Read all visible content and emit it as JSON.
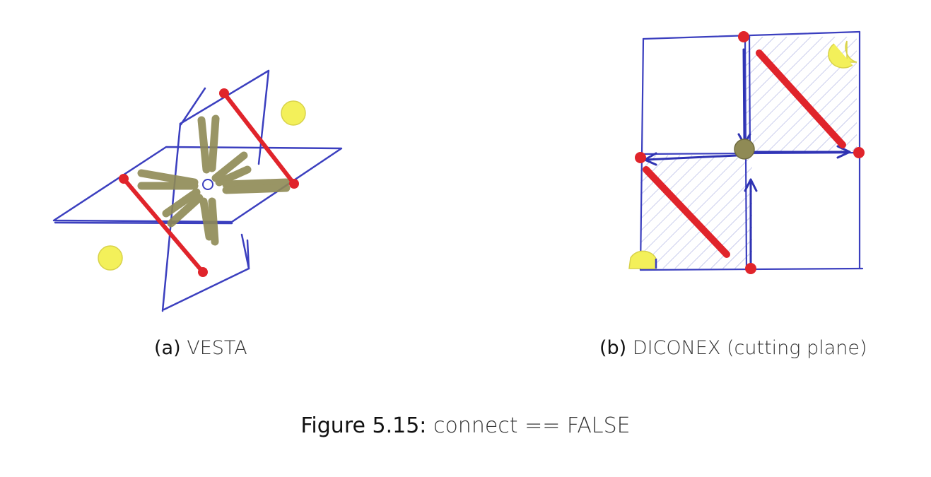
{
  "subfigures": [
    {
      "tag": "(a)",
      "name": "VESTA"
    },
    {
      "tag": "(b)",
      "name": "DICONEX (cutting plane)"
    }
  ],
  "figure": {
    "label": "Figure 5.15:",
    "text": "connect == FALSE"
  },
  "colors": {
    "pen_blue": "#3b3fbf",
    "marker_red": "#e0242b",
    "olive": "#8f8a55",
    "yellow": "#f3f05a",
    "hatch": "#8e96d8"
  }
}
